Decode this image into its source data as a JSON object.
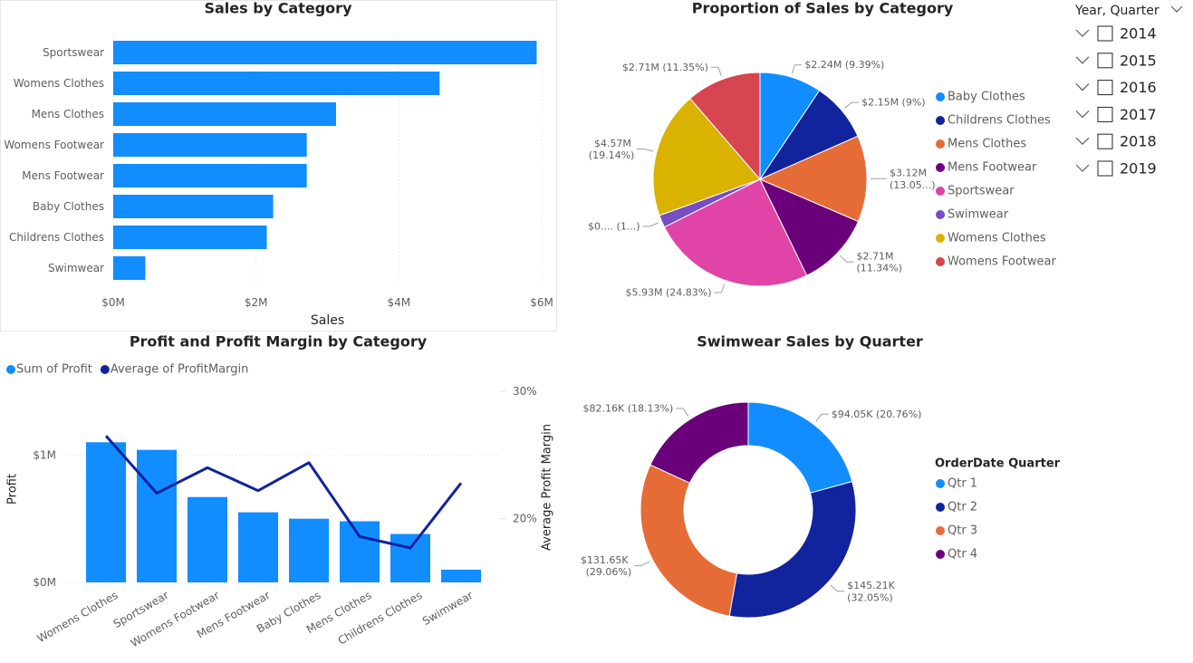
{
  "chart_data": [
    {
      "type": "hbar",
      "title": "Sales by Category",
      "categories": [
        "Sportswear",
        "Womens Clothes",
        "Mens Clothes",
        "Womens Footwear",
        "Mens Footwear",
        "Baby Clothes",
        "Childrens Clothes",
        "Swimwear"
      ],
      "values": [
        5.93,
        4.57,
        3.12,
        2.71,
        2.71,
        2.24,
        2.15,
        0.45
      ],
      "color": "#118DFF",
      "xlim": [
        0,
        6
      ],
      "xticks": [
        {
          "value": 0,
          "label": "$0M"
        },
        {
          "value": 2,
          "label": "$2M"
        },
        {
          "value": 4,
          "label": "$4M"
        },
        {
          "value": 6,
          "label": "$6M"
        }
      ],
      "xlabel": "Sales",
      "grid": true
    },
    {
      "type": "pie",
      "title": "Proportion of Sales by Category",
      "categories": [
        "Baby Clothes",
        "Childrens Clothes",
        "Mens Clothes",
        "Mens Footwear",
        "Sportswear",
        "Swimwear",
        "Womens Clothes",
        "Womens Footwear"
      ],
      "values": [
        2.24,
        2.15,
        3.12,
        2.71,
        5.93,
        0.45,
        4.57,
        2.71
      ],
      "value_labels": [
        "$2.24M (9.39%)",
        "$2.15M (9%)",
        "$3.12M (13.05...)",
        "$2.71M (11.34%)",
        "$5.93M (24.83%)",
        "$0.... (1...)",
        "$4.57M (19.14%)",
        "$2.71M (11.35%)"
      ],
      "colors": [
        "#118DFF",
        "#12239E",
        "#E66C37",
        "#6B007B",
        "#E044A7",
        "#744EC2",
        "#D9B300",
        "#D64550"
      ],
      "legend": "right"
    },
    {
      "type": "combo",
      "title": "Profit and Profit Margin by Category",
      "categories": [
        "Womens Clothes",
        "Sportswear",
        "Womens Footwear",
        "Mens Footwear",
        "Baby Clothes",
        "Mens Clothes",
        "Childrens Clothes",
        "Swimwear"
      ],
      "series": [
        {
          "name": "Sum of Profit",
          "color": "#118DFF",
          "type": "bar",
          "values": [
            1.1,
            1.04,
            0.67,
            0.55,
            0.5,
            0.48,
            0.38,
            0.1
          ]
        },
        {
          "name": "Average of ProfitMargin",
          "color": "#12239E",
          "type": "line",
          "axis": "y2",
          "values": [
            26.5,
            22.0,
            24.0,
            22.2,
            24.4,
            18.6,
            17.7,
            22.8
          ]
        }
      ],
      "ylabel": "Profit",
      "y2label": "Average Profit Margin",
      "ylim": [
        0,
        1.5
      ],
      "yticks": [
        {
          "value": 0,
          "label": "$0M"
        },
        {
          "value": 1,
          "label": "$1M"
        }
      ],
      "y2lim": [
        15,
        30
      ],
      "y2ticks": [
        {
          "value": 20,
          "label": "20%"
        },
        {
          "value": 30,
          "label": "30%"
        }
      ],
      "legend": "top-left",
      "grid": true
    },
    {
      "type": "donut",
      "title": "Swimwear Sales by Quarter",
      "legend_title": "OrderDate Quarter",
      "categories": [
        "Qtr 1",
        "Qtr 2",
        "Qtr 3",
        "Qtr 4"
      ],
      "values": [
        94.05,
        145.21,
        131.65,
        82.16
      ],
      "value_labels": [
        "$94.05K (20.76%)",
        "$145.21K (32.05%)",
        "$131.65K (29.06%)",
        "$82.16K (18.13%)"
      ],
      "colors": [
        "#118DFF",
        "#12239E",
        "#E66C37",
        "#6B007B"
      ],
      "legend": "right"
    }
  ],
  "slicer": {
    "title": "Year, Quarter",
    "items": [
      "2014",
      "2015",
      "2016",
      "2017",
      "2018",
      "2019"
    ]
  }
}
